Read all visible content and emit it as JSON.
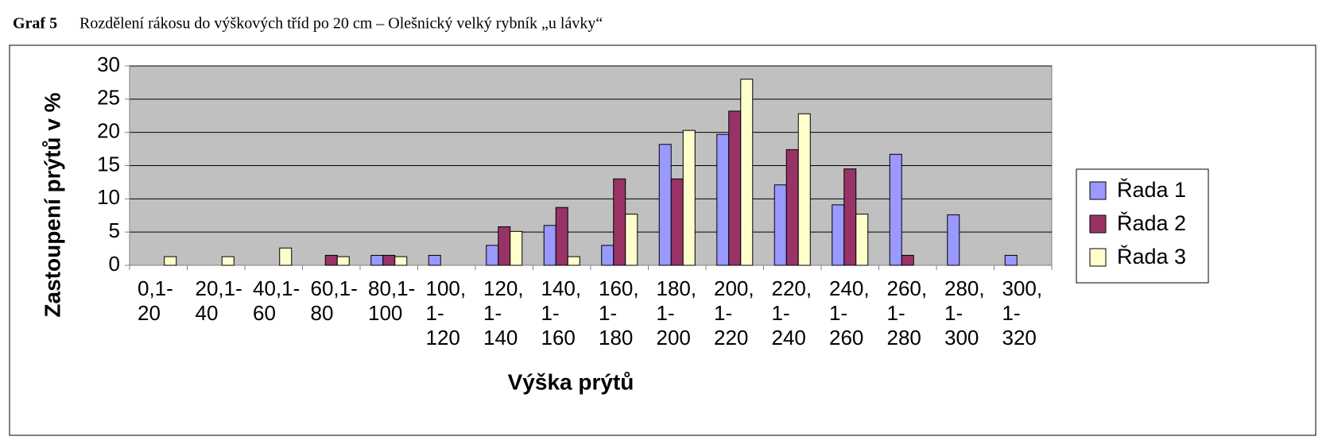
{
  "chart_data": {
    "type": "bar",
    "title_label": "Graf 5",
    "title": "Rozdělení rákosu do výškových tříd po 20 cm – Olešnický velký rybník „u lávky“",
    "x_label": "Výška prýtů",
    "y_label": "Zastoupení prýtů v %",
    "categories": [
      "0,1-20",
      "20,1-40",
      "40,1-60",
      "60,1-80",
      "80,1-100",
      "100, 1-120",
      "120, 1-140",
      "140, 1-160",
      "160, 1-180",
      "180, 1-200",
      "200, 1-220",
      "220, 1-240",
      "240, 1-260",
      "260, 1-280",
      "280, 1-300",
      "300, 1-320"
    ],
    "series": [
      {
        "name": "Řada 1",
        "color": "#9999ff",
        "values": [
          0,
          0,
          0,
          0,
          1.5,
          1.5,
          3,
          6,
          3,
          18.2,
          19.7,
          12.1,
          9.1,
          16.7,
          7.6,
          1.5
        ]
      },
      {
        "name": "Řada 2",
        "color": "#993366",
        "values": [
          0,
          0,
          0,
          1.5,
          1.5,
          0,
          5.8,
          8.7,
          13,
          13,
          23.2,
          17.4,
          14.5,
          1.5,
          0,
          0
        ]
      },
      {
        "name": "Řada 3",
        "color": "#ffffcc",
        "values": [
          1.3,
          1.3,
          2.6,
          1.3,
          1.3,
          0,
          5.1,
          1.3,
          7.7,
          20.3,
          28,
          22.8,
          7.7,
          0,
          0,
          0
        ]
      }
    ],
    "ylim": [
      0,
      30
    ],
    "yticks": [
      0,
      5,
      10,
      15,
      20,
      25,
      30
    ],
    "grid": true,
    "legend": "right"
  }
}
